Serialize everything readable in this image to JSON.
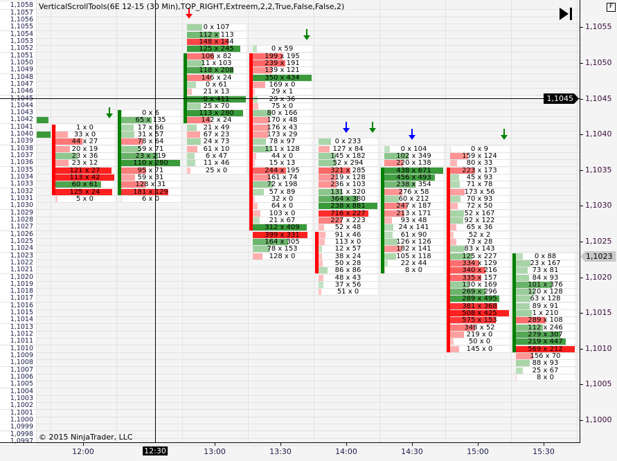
{
  "title": "VerticalScrollTools(6E 12-15 (30 Min),TOP_RIGHT,Extreem,2,2,True,False,False,2)",
  "copyright": "© 2015 NinjaTrader, LLC",
  "f_button": "F",
  "colors": {
    "buy": "#3a9a3a",
    "sell": "#ff2020",
    "up_candle": "#008000",
    "down_candle": "#ff0000",
    "signal_blue": "#0000ff"
  },
  "left_price_labels": [
    "1,1058",
    "1,1057",
    "1,1056",
    "1,1055",
    "1,1054",
    "1,1053",
    "1,1052",
    "1,1051",
    "1,1050",
    "1,1049",
    "1,1048",
    "1,1047",
    "1,1046",
    "1,1045",
    "1,1044",
    "1,1043",
    "1,1042",
    "1,1041",
    "1,1040",
    "1,1039",
    "1,1038",
    "1,1037",
    "1,1036",
    "1,1035",
    "1,1034",
    "1,1033",
    "1,1032",
    "1,1031",
    "1,1030",
    "1,1029",
    "1,1028",
    "1,1027",
    "1,1026",
    "1,1025",
    "1,1024",
    "1,1023",
    "1,1022",
    "1,1021",
    "1,1020",
    "1,1019",
    "1,1018",
    "1,1017",
    "1,1016",
    "1,1015",
    "1,1014",
    "1,1013",
    "1,1012",
    "1,1011",
    "1,1010",
    "1,1009",
    "1,1008",
    "1,1007",
    "1,1006",
    "1,1005",
    "1,1004",
    "1,1003",
    "1,1002",
    "1,1001",
    "1,1000",
    "1,0999",
    "1,0998",
    "1,0997"
  ],
  "right_axis_labels": [
    "1,1055",
    "1,1050",
    "1,1045",
    "1,1040",
    "1,1035",
    "1,1030",
    "1,1025",
    "1,1020",
    "1,1015",
    "1,1010",
    "1,1005",
    "1,1000"
  ],
  "time_labels": [
    "12:00",
    "13:00",
    "13:30",
    "14:00",
    "14:30",
    "15:00",
    "15:30"
  ],
  "crosshair": {
    "price": "1,1045",
    "time": "12:30"
  },
  "last_price": "1,1023",
  "partial_bar": {
    "buy_levels": [
      1.1042,
      1.104
    ]
  },
  "columns": [
    {
      "time": "12:00",
      "top": 1.1041,
      "candle": {
        "dir": "down",
        "high": 1.1041,
        "low": 1.1032
      },
      "rows": [
        "1 x 0",
        "33 x 0",
        "44 x 27",
        "20 x 19",
        "23 x 36",
        "23 x 12",
        "121 x 27",
        "113 x 42",
        "60 x 61",
        "125 x 24",
        "5 x 0"
      ]
    },
    {
      "time": "12:30",
      "top": 1.1043,
      "candle": {
        "dir": "up",
        "high": 1.1043,
        "low": 1.1032
      },
      "rows": [
        "0 x 6",
        "65 x 135",
        "17 x 66",
        "31 x 57",
        "78 x 64",
        "59 x 71",
        "23 x 219",
        "110 x 280",
        "95 x 71",
        "59 x 31",
        "128 x 31",
        "181 x 129",
        "6 x 0"
      ]
    },
    {
      "time": "13:00",
      "top": 1.1055,
      "candle": {
        "dir": "up",
        "high": 1.1051,
        "low": 1.1042
      },
      "rows": [
        "0 x 107",
        "112 x 113",
        "148 x 144",
        "125 x 245",
        "106 x 82",
        "11 x 103",
        "118 x 208",
        "146 x 24",
        "0 x 61",
        "21 x 13",
        "0 x 411",
        "25 x 70",
        "113 x 280",
        "142 x 24",
        "21 x 49",
        "67 x 23",
        "24 x 73",
        "61 x 10",
        "6 x 47",
        "11 x 46",
        "25 x 0"
      ]
    },
    {
      "time": "13:30",
      "top": 1.1052,
      "candle": {
        "dir": "down",
        "high": 1.1051,
        "low": 1.1027
      },
      "rows": [
        "0 x 59",
        "199 x 195",
        "239 x 191",
        "139 x 121",
        "350 x 434",
        "169 x 0",
        "29 x 1",
        "29 x 36",
        "75 x 0",
        "80 x 166",
        "170 x 48",
        "176 x 43",
        "173 x 29",
        "78 x 97",
        "111 x 128",
        "44 x 0",
        "15 x 13",
        "244 x 195",
        "161 x 74",
        "72 x 198",
        "57 x 89",
        "32 x 0",
        "64 x 0",
        "103 x 0",
        "21 x 67",
        "312 x 409",
        "399 x 331",
        "164 x 305",
        "78 x 153",
        "128 x 0"
      ]
    },
    {
      "time": "14:00",
      "top": 1.1039,
      "candle": {
        "dir": "down",
        "high": 1.1026,
        "low": 1.1021
      },
      "rows": [
        "0 x 233",
        "127 x 84",
        "145 x 182",
        "52 x 294",
        "321 x 285",
        "219 x 128",
        "236 x 103",
        "131 x 320",
        "364 x 380",
        "238 x 881",
        "716 x 227",
        "227 x 223",
        "52 x 48",
        "91 x 46",
        "113 x 0",
        "12 x 57",
        "38 x 24",
        "50 x 28",
        "86 x 86",
        "48 x 43",
        "37 x 56",
        "51 x 0"
      ]
    },
    {
      "time": "14:30",
      "top": 1.1038,
      "candle": {
        "dir": "up",
        "high": 1.1035,
        "low": 1.1021
      },
      "rows": [
        "0 x 104",
        "102 x 349",
        "220 x 138",
        "438 x 671",
        "456 x 493",
        "238 x 354",
        "276 x 58",
        "60 x 212",
        "247 x 187",
        "213 x 171",
        "93 x 48",
        "24 x 141",
        "61 x 90",
        "126 x 126",
        "182 x 141",
        "105 x 118",
        "22 x 44",
        "8 x 0"
      ]
    },
    {
      "time": "15:00",
      "top": 1.1038,
      "candle": {
        "dir": "down",
        "high": 1.1035,
        "low": 1.101
      },
      "rows": [
        "0 x 9",
        "159 x 124",
        "80 x 33",
        "223 x 173",
        "45 x 93",
        "71 x 78",
        "173 x 56",
        "70 x 93",
        "72 x 50",
        "52 x 167",
        "92 x 122",
        "65 x 36",
        "52 x 2",
        "73 x 28",
        "83 x 143",
        "125 x 227",
        "334 x 129",
        "340 x 216",
        "335 x 157",
        "130 x 169",
        "269 x 296",
        "289 x 495",
        "381 x 368",
        "508 x 425",
        "575 x 153",
        "348 x 52",
        "219 x 0",
        "50 x 0",
        "145 x 0"
      ]
    },
    {
      "time": "15:30",
      "top": 1.1023,
      "candle": {
        "dir": "up",
        "high": 1.1023,
        "low": 1.101
      },
      "rows": [
        "0 x 88",
        "23 x 167",
        "73 x 81",
        "84 x 93",
        "101 x 376",
        "120 x 128",
        "63 x 128",
        "89 x 91",
        "1 x 210",
        "289 x 108",
        "112 x 246",
        "279 x 307",
        "219 x 447",
        "569 x 212",
        "156 x 70",
        "88 x 93",
        "25 x 67",
        "8 x 0"
      ]
    }
  ],
  "signals": [
    {
      "column": 0,
      "price": 1.1043,
      "color": "green",
      "align": "right"
    },
    {
      "column": 2,
      "price": 1.1057,
      "color": "red",
      "align": "left"
    },
    {
      "column": 3,
      "price": 1.1054,
      "color": "green",
      "align": "right"
    },
    {
      "column": 4,
      "price": 1.1041,
      "color": "blue",
      "align": "center"
    },
    {
      "column": 4,
      "price": 1.1041,
      "color": "green",
      "align": "right"
    },
    {
      "column": 5,
      "price": 1.104,
      "color": "blue",
      "align": "center"
    },
    {
      "column": 6,
      "price": 1.104,
      "color": "green",
      "align": "right"
    }
  ]
}
